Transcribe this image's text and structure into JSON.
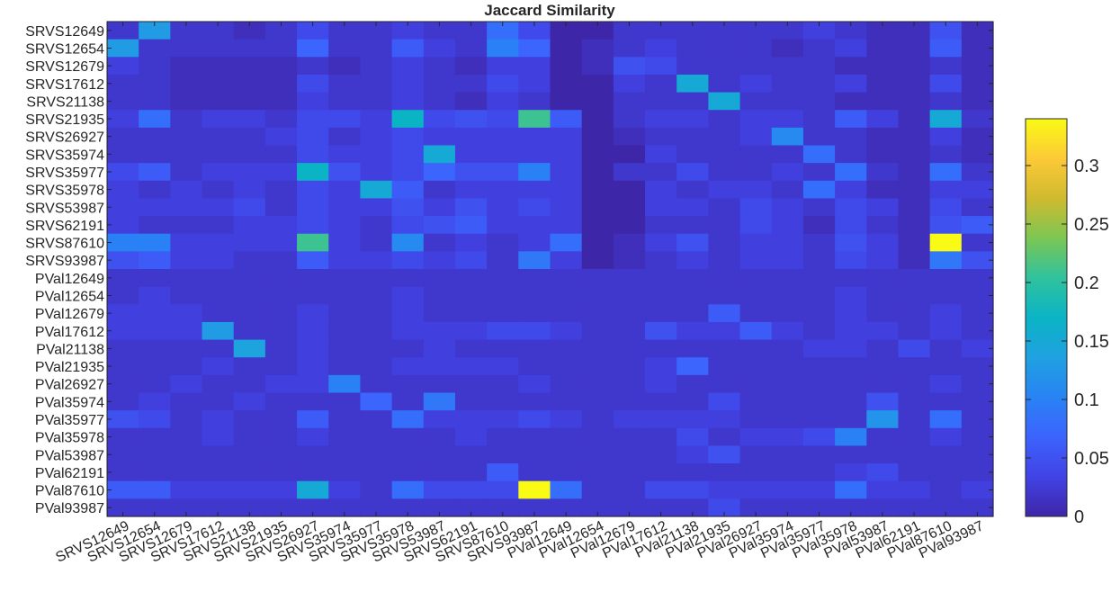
{
  "chart_data": {
    "type": "heatmap",
    "title": "Jaccard Similarity",
    "xlabel": "",
    "ylabel": "",
    "labels": [
      "SRVS12649",
      "SRVS12654",
      "SRVS12679",
      "SRVS17612",
      "SRVS21138",
      "SRVS21935",
      "SRVS26927",
      "SRVS35974",
      "SRVS35977",
      "SRVS35978",
      "SRVS53987",
      "SRVS62191",
      "SRVS87610",
      "SRVS93987",
      "PVal12649",
      "PVal12654",
      "PVal12679",
      "PVal17612",
      "PVal21138",
      "PVal21935",
      "PVal26927",
      "PVal35974",
      "PVal35977",
      "PVal35978",
      "PVal53987",
      "PVal62191",
      "PVal87610",
      "PVal93987"
    ],
    "colorbar": {
      "range": [
        0,
        0.34
      ],
      "ticks": [
        0,
        0.05,
        0.1,
        0.15,
        0.2,
        0.25,
        0.3
      ],
      "tick_labels": [
        "0",
        "0.05",
        "0.1",
        "0.15",
        "0.2",
        "0.25",
        "0.3"
      ],
      "colormap": "parula",
      "stops": [
        "#3e26a8",
        "#4143e5",
        "#3c63fd",
        "#2983f4",
        "#1fa1e1",
        "#0bb4c5",
        "#30c29e",
        "#7cc653",
        "#d0ba2f",
        "#fcc937",
        "#f9fb15"
      ]
    },
    "values": [
      [
        0.02,
        0.13,
        0.02,
        0.02,
        0.01,
        0.02,
        0.04,
        0.02,
        0.02,
        0.03,
        0.02,
        0.02,
        0.08,
        0.04,
        0.0,
        0.0,
        0.02,
        0.02,
        0.02,
        0.02,
        0.02,
        0.02,
        0.03,
        0.02,
        0.01,
        0.01,
        0.05,
        0.01
      ],
      [
        0.13,
        0.02,
        0.02,
        0.02,
        0.02,
        0.02,
        0.07,
        0.02,
        0.02,
        0.06,
        0.03,
        0.02,
        0.1,
        0.07,
        0.0,
        0.01,
        0.02,
        0.03,
        0.02,
        0.02,
        0.02,
        0.01,
        0.02,
        0.03,
        0.01,
        0.01,
        0.06,
        0.01
      ],
      [
        0.03,
        0.02,
        0.01,
        0.01,
        0.01,
        0.01,
        0.02,
        0.01,
        0.02,
        0.03,
        0.02,
        0.01,
        0.03,
        0.03,
        0.0,
        0.01,
        0.05,
        0.04,
        0.02,
        0.02,
        0.02,
        0.02,
        0.02,
        0.01,
        0.01,
        0.01,
        0.02,
        0.01
      ],
      [
        0.02,
        0.02,
        0.01,
        0.01,
        0.01,
        0.01,
        0.04,
        0.02,
        0.02,
        0.03,
        0.02,
        0.02,
        0.04,
        0.03,
        0.0,
        0.0,
        0.03,
        0.02,
        0.15,
        0.02,
        0.03,
        0.02,
        0.02,
        0.03,
        0.01,
        0.01,
        0.04,
        0.01
      ],
      [
        0.02,
        0.02,
        0.01,
        0.01,
        0.01,
        0.01,
        0.03,
        0.02,
        0.02,
        0.03,
        0.02,
        0.01,
        0.03,
        0.02,
        0.0,
        0.0,
        0.02,
        0.02,
        0.02,
        0.15,
        0.02,
        0.02,
        0.02,
        0.01,
        0.01,
        0.01,
        0.02,
        0.01
      ],
      [
        0.03,
        0.08,
        0.02,
        0.03,
        0.03,
        0.02,
        0.04,
        0.04,
        0.03,
        0.17,
        0.04,
        0.05,
        0.04,
        0.21,
        0.06,
        0.0,
        0.02,
        0.03,
        0.03,
        0.02,
        0.03,
        0.03,
        0.02,
        0.06,
        0.03,
        0.01,
        0.15,
        0.02
      ],
      [
        0.02,
        0.02,
        0.02,
        0.02,
        0.02,
        0.03,
        0.04,
        0.02,
        0.03,
        0.04,
        0.03,
        0.03,
        0.03,
        0.03,
        0.03,
        0.0,
        0.01,
        0.02,
        0.02,
        0.02,
        0.03,
        0.11,
        0.02,
        0.02,
        0.01,
        0.01,
        0.03,
        0.01
      ],
      [
        0.02,
        0.02,
        0.02,
        0.02,
        0.02,
        0.02,
        0.04,
        0.03,
        0.03,
        0.04,
        0.15,
        0.03,
        0.03,
        0.03,
        0.03,
        0.0,
        0.0,
        0.03,
        0.02,
        0.02,
        0.02,
        0.02,
        0.08,
        0.02,
        0.01,
        0.01,
        0.02,
        0.01
      ],
      [
        0.04,
        0.06,
        0.02,
        0.03,
        0.03,
        0.03,
        0.17,
        0.05,
        0.03,
        0.04,
        0.07,
        0.05,
        0.05,
        0.1,
        0.03,
        0.0,
        0.02,
        0.02,
        0.04,
        0.02,
        0.02,
        0.03,
        0.02,
        0.08,
        0.02,
        0.01,
        0.08,
        0.02
      ],
      [
        0.03,
        0.02,
        0.03,
        0.02,
        0.03,
        0.02,
        0.04,
        0.03,
        0.15,
        0.06,
        0.02,
        0.03,
        0.03,
        0.03,
        0.03,
        0.0,
        0.0,
        0.03,
        0.02,
        0.03,
        0.03,
        0.02,
        0.08,
        0.03,
        0.01,
        0.01,
        0.03,
        0.03
      ],
      [
        0.03,
        0.03,
        0.03,
        0.03,
        0.04,
        0.02,
        0.04,
        0.03,
        0.03,
        0.05,
        0.03,
        0.05,
        0.03,
        0.04,
        0.03,
        0.0,
        0.0,
        0.03,
        0.03,
        0.02,
        0.04,
        0.03,
        0.02,
        0.04,
        0.03,
        0.01,
        0.04,
        0.02
      ],
      [
        0.03,
        0.02,
        0.02,
        0.02,
        0.03,
        0.03,
        0.04,
        0.03,
        0.02,
        0.04,
        0.05,
        0.06,
        0.03,
        0.03,
        0.03,
        0.0,
        0.0,
        0.02,
        0.02,
        0.02,
        0.04,
        0.03,
        0.01,
        0.04,
        0.02,
        0.01,
        0.05,
        0.06
      ],
      [
        0.1,
        0.1,
        0.03,
        0.03,
        0.03,
        0.03,
        0.21,
        0.03,
        0.02,
        0.11,
        0.02,
        0.03,
        0.02,
        0.03,
        0.08,
        0.0,
        0.01,
        0.03,
        0.05,
        0.02,
        0.03,
        0.03,
        0.02,
        0.05,
        0.03,
        0.01,
        0.34,
        0.02
      ],
      [
        0.05,
        0.06,
        0.03,
        0.03,
        0.02,
        0.02,
        0.06,
        0.03,
        0.03,
        0.04,
        0.03,
        0.04,
        0.02,
        0.09,
        0.03,
        0.0,
        0.01,
        0.02,
        0.03,
        0.02,
        0.03,
        0.03,
        0.02,
        0.04,
        0.03,
        0.01,
        0.09,
        0.05
      ],
      [
        0.02,
        0.02,
        0.02,
        0.02,
        0.02,
        0.02,
        0.02,
        0.02,
        0.02,
        0.02,
        0.02,
        0.02,
        0.02,
        0.02,
        0.02,
        0.02,
        0.02,
        0.02,
        0.02,
        0.02,
        0.02,
        0.02,
        0.02,
        0.02,
        0.02,
        0.02,
        0.02,
        0.02
      ],
      [
        0.02,
        0.03,
        0.02,
        0.02,
        0.02,
        0.02,
        0.02,
        0.02,
        0.02,
        0.03,
        0.02,
        0.02,
        0.02,
        0.02,
        0.02,
        0.02,
        0.02,
        0.02,
        0.02,
        0.02,
        0.02,
        0.02,
        0.02,
        0.03,
        0.02,
        0.02,
        0.02,
        0.02
      ],
      [
        0.03,
        0.03,
        0.03,
        0.02,
        0.02,
        0.02,
        0.03,
        0.02,
        0.02,
        0.03,
        0.02,
        0.02,
        0.02,
        0.02,
        0.02,
        0.02,
        0.02,
        0.02,
        0.02,
        0.06,
        0.02,
        0.02,
        0.02,
        0.03,
        0.02,
        0.02,
        0.03,
        0.02
      ],
      [
        0.03,
        0.03,
        0.03,
        0.13,
        0.02,
        0.02,
        0.03,
        0.02,
        0.02,
        0.03,
        0.03,
        0.03,
        0.04,
        0.04,
        0.03,
        0.02,
        0.02,
        0.05,
        0.03,
        0.03,
        0.06,
        0.03,
        0.02,
        0.03,
        0.03,
        0.02,
        0.03,
        0.02
      ],
      [
        0.02,
        0.02,
        0.02,
        0.02,
        0.14,
        0.02,
        0.03,
        0.02,
        0.02,
        0.02,
        0.03,
        0.02,
        0.02,
        0.02,
        0.02,
        0.02,
        0.02,
        0.02,
        0.02,
        0.02,
        0.02,
        0.02,
        0.03,
        0.03,
        0.02,
        0.04,
        0.02,
        0.03
      ],
      [
        0.02,
        0.02,
        0.02,
        0.03,
        0.02,
        0.02,
        0.03,
        0.02,
        0.02,
        0.03,
        0.03,
        0.03,
        0.03,
        0.02,
        0.02,
        0.02,
        0.02,
        0.03,
        0.07,
        0.02,
        0.02,
        0.02,
        0.02,
        0.02,
        0.02,
        0.02,
        0.02,
        0.02
      ],
      [
        0.02,
        0.02,
        0.03,
        0.02,
        0.02,
        0.03,
        0.03,
        0.1,
        0.02,
        0.02,
        0.02,
        0.02,
        0.02,
        0.03,
        0.02,
        0.02,
        0.02,
        0.03,
        0.02,
        0.02,
        0.02,
        0.02,
        0.02,
        0.02,
        0.02,
        0.02,
        0.03,
        0.02
      ],
      [
        0.02,
        0.03,
        0.02,
        0.02,
        0.03,
        0.02,
        0.02,
        0.02,
        0.07,
        0.02,
        0.09,
        0.02,
        0.02,
        0.02,
        0.02,
        0.02,
        0.02,
        0.02,
        0.02,
        0.04,
        0.02,
        0.02,
        0.02,
        0.02,
        0.05,
        0.02,
        0.02,
        0.02
      ],
      [
        0.05,
        0.04,
        0.02,
        0.03,
        0.02,
        0.02,
        0.06,
        0.02,
        0.02,
        0.08,
        0.03,
        0.03,
        0.03,
        0.04,
        0.03,
        0.02,
        0.03,
        0.03,
        0.03,
        0.03,
        0.02,
        0.02,
        0.02,
        0.02,
        0.12,
        0.02,
        0.08,
        0.02
      ],
      [
        0.02,
        0.02,
        0.02,
        0.03,
        0.02,
        0.02,
        0.03,
        0.02,
        0.02,
        0.02,
        0.02,
        0.03,
        0.02,
        0.02,
        0.02,
        0.02,
        0.02,
        0.02,
        0.04,
        0.02,
        0.03,
        0.03,
        0.04,
        0.1,
        0.02,
        0.02,
        0.03,
        0.02
      ],
      [
        0.02,
        0.02,
        0.02,
        0.02,
        0.02,
        0.02,
        0.02,
        0.02,
        0.02,
        0.02,
        0.02,
        0.02,
        0.02,
        0.02,
        0.02,
        0.02,
        0.02,
        0.02,
        0.03,
        0.05,
        0.02,
        0.02,
        0.02,
        0.02,
        0.02,
        0.02,
        0.02,
        0.02
      ],
      [
        0.02,
        0.02,
        0.02,
        0.02,
        0.02,
        0.02,
        0.02,
        0.02,
        0.02,
        0.02,
        0.02,
        0.02,
        0.06,
        0.02,
        0.02,
        0.02,
        0.02,
        0.02,
        0.02,
        0.02,
        0.02,
        0.02,
        0.02,
        0.03,
        0.04,
        0.02,
        0.02,
        0.02
      ],
      [
        0.06,
        0.06,
        0.03,
        0.03,
        0.03,
        0.03,
        0.15,
        0.03,
        0.02,
        0.08,
        0.04,
        0.04,
        0.04,
        0.34,
        0.08,
        0.02,
        0.02,
        0.04,
        0.04,
        0.03,
        0.03,
        0.03,
        0.03,
        0.08,
        0.03,
        0.03,
        0.02,
        0.03
      ],
      [
        0.02,
        0.02,
        0.02,
        0.02,
        0.02,
        0.02,
        0.02,
        0.02,
        0.02,
        0.02,
        0.02,
        0.02,
        0.02,
        0.02,
        0.02,
        0.02,
        0.02,
        0.02,
        0.02,
        0.04,
        0.02,
        0.02,
        0.02,
        0.02,
        0.02,
        0.02,
        0.02,
        0.02
      ]
    ]
  }
}
